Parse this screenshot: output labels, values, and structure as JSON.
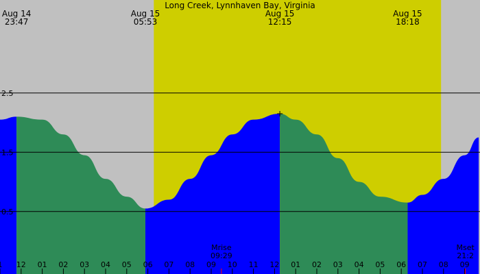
{
  "chart_data": {
    "type": "area",
    "title": "Long Creek, Lynnhaven Bay, Virginia",
    "series": [
      {
        "x": [
          "23:47",
          "01:00",
          "02:00",
          "03:00",
          "04:00",
          "05:00",
          "05:53",
          "07:00",
          "08:00",
          "09:00",
          "10:00",
          "11:00",
          "12:15",
          "13:00",
          "14:00",
          "15:00",
          "16:00",
          "17:00",
          "18:18",
          "19:00",
          "20:00",
          "21:00",
          "21:40"
        ],
        "values": [
          2.1,
          2.05,
          1.8,
          1.45,
          1.05,
          0.75,
          0.55,
          0.7,
          1.05,
          1.45,
          1.8,
          2.05,
          2.15,
          2.05,
          1.8,
          1.4,
          1.0,
          0.75,
          0.65,
          0.78,
          1.05,
          1.45,
          1.75
        ]
      }
    ],
    "y_ticks": [
      "0.5",
      "1.5",
      "2.5"
    ],
    "tide_events": [
      {
        "date": "Aug 14",
        "time": "23:47"
      },
      {
        "date": "Aug 15",
        "time": "05:53"
      },
      {
        "date": "Aug 15",
        "time": "12:15"
      },
      {
        "date": "Aug 15",
        "time": "18:18"
      }
    ],
    "x_tick_labels": [
      "1",
      "12",
      "01",
      "02",
      "03",
      "04",
      "05",
      "06",
      "07",
      "08",
      "09",
      "10",
      "11",
      "12",
      "01",
      "02",
      "03",
      "04",
      "05",
      "06",
      "07",
      "08",
      "09"
    ],
    "moon_events": [
      {
        "label": "Mrise",
        "time": "09:29"
      },
      {
        "label": "Mset",
        "time": "21:2"
      }
    ],
    "daylight": {
      "start": "06:17",
      "end": "19:53"
    },
    "colors": {
      "night_bg": "#c0c0c0",
      "day_bg": "#cece00",
      "falling": "#2e8b57",
      "rising": "#0000ff",
      "moon_tick": "#ff0000"
    }
  }
}
